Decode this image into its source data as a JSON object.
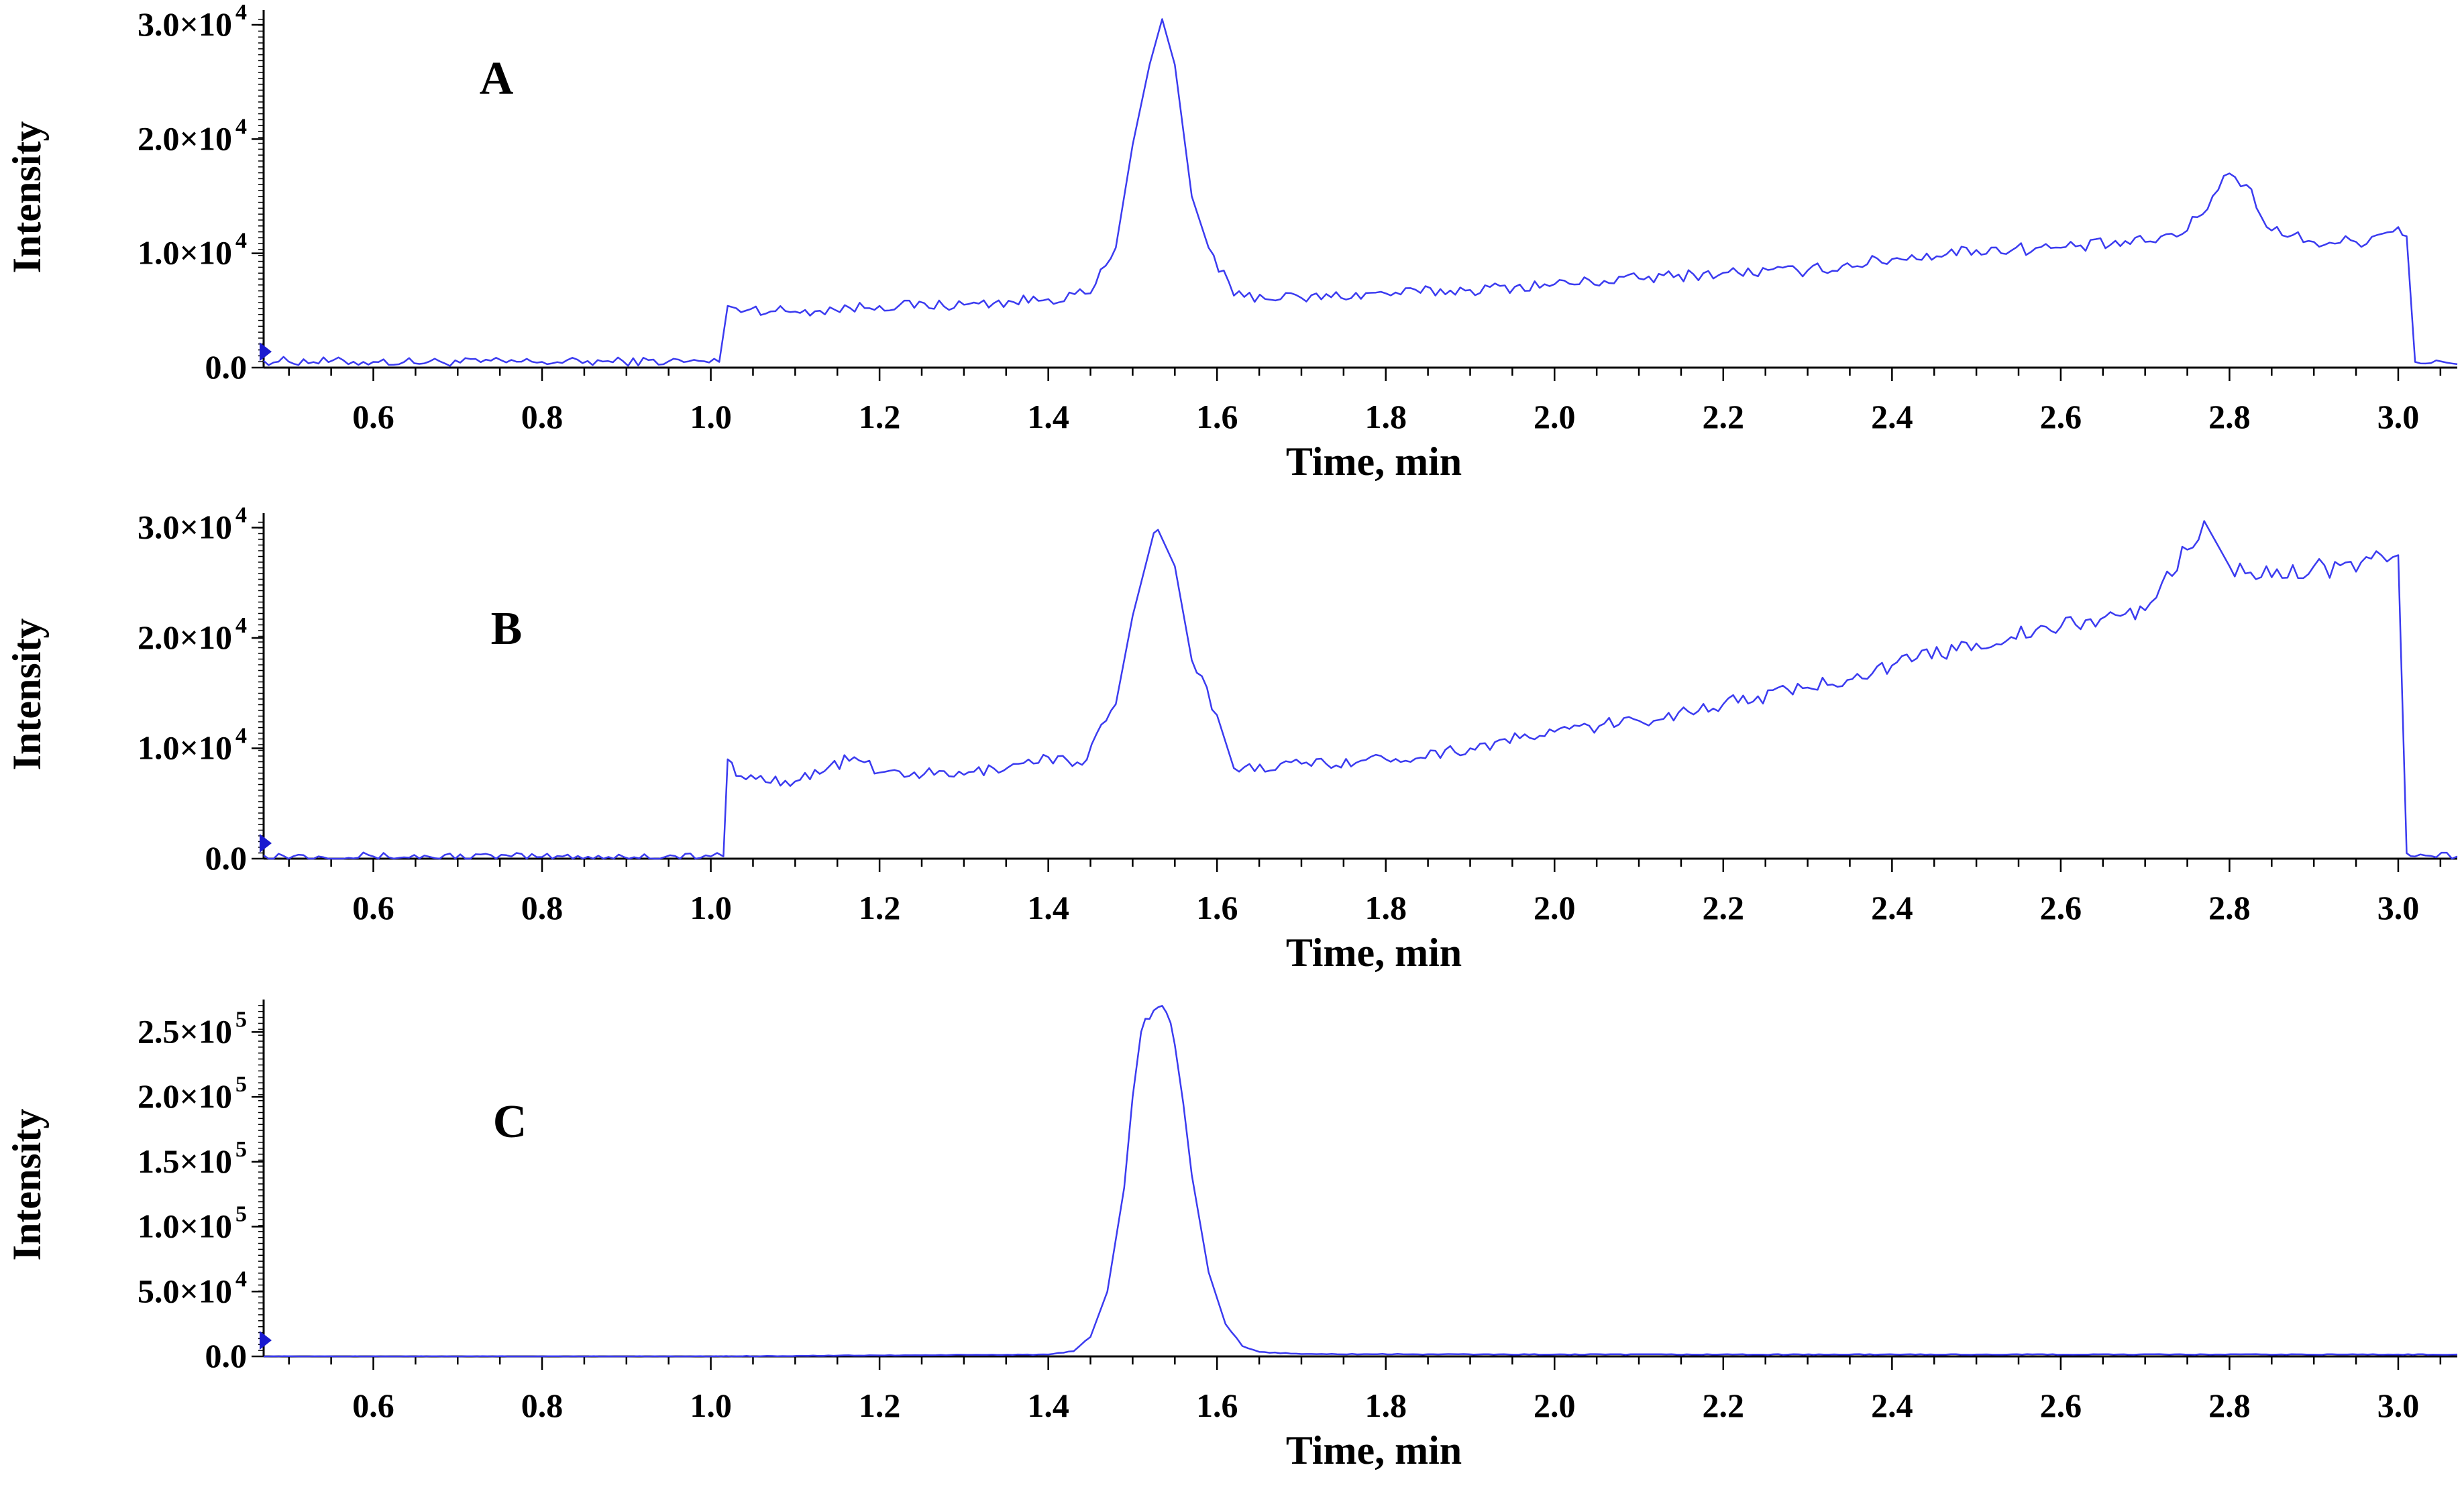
{
  "chart_data": [
    {
      "type": "line",
      "panel_label": "A",
      "xlabel": "Time, min",
      "ylabel": "Intensity",
      "xlim": [
        0.47,
        3.07
      ],
      "ylim": [
        0,
        31000
      ],
      "x_ticks": [
        "0.6",
        "0.8",
        "1.0",
        "1.2",
        "1.4",
        "1.6",
        "1.8",
        "2.0",
        "2.2",
        "2.4",
        "2.6",
        "2.8",
        "3.0"
      ],
      "y_ticks": [
        {
          "value": 0,
          "mantissa": "0.0",
          "exponent": ""
        },
        {
          "value": 10000,
          "mantissa": "1.0×10",
          "exponent": "4"
        },
        {
          "value": 20000,
          "mantissa": "2.0×10",
          "exponent": "4"
        },
        {
          "value": 30000,
          "mantissa": "3.0×10",
          "exponent": "4"
        }
      ],
      "line_color": "#3b3bf0",
      "series": [
        {
          "x": [
            0.47,
            0.6,
            0.8,
            0.95,
            1.01,
            1.02,
            1.03,
            1.1,
            1.2,
            1.3,
            1.4,
            1.45,
            1.48,
            1.5,
            1.52,
            1.535,
            1.55,
            1.57,
            1.59,
            1.62,
            1.7,
            1.8,
            1.9,
            2.0,
            2.1,
            2.2,
            2.3,
            2.4,
            2.5,
            2.6,
            2.7,
            2.75,
            2.78,
            2.8,
            2.82,
            2.85,
            2.9,
            2.95,
            3.0,
            3.01,
            3.02,
            3.07
          ],
          "y": [
            600,
            500,
            500,
            550,
            500,
            5400,
            5200,
            4900,
            5400,
            5500,
            6000,
            6500,
            10500,
            19500,
            26500,
            30500,
            26500,
            15000,
            10500,
            6300,
            6100,
            6500,
            6800,
            7300,
            7800,
            8300,
            8500,
            9500,
            10300,
            10500,
            11000,
            12000,
            15000,
            17000,
            16000,
            12000,
            11000,
            11000,
            12300,
            11500,
            500,
            300
          ]
        }
      ]
    },
    {
      "type": "line",
      "panel_label": "B",
      "xlabel": "Time, min",
      "ylabel": "Intensity",
      "xlim": [
        0.47,
        3.07
      ],
      "ylim": [
        0,
        31000
      ],
      "x_ticks": [
        "0.6",
        "0.8",
        "1.0",
        "1.2",
        "1.4",
        "1.6",
        "1.8",
        "2.0",
        "2.2",
        "2.4",
        "2.6",
        "2.8",
        "3.0"
      ],
      "y_ticks": [
        {
          "value": 0,
          "mantissa": "0.0",
          "exponent": ""
        },
        {
          "value": 10000,
          "mantissa": "1.0×10",
          "exponent": "4"
        },
        {
          "value": 20000,
          "mantissa": "2.0×10",
          "exponent": "4"
        },
        {
          "value": 30000,
          "mantissa": "3.0×10",
          "exponent": "4"
        }
      ],
      "line_color": "#3b3bf0",
      "series": [
        {
          "x": [
            0.47,
            0.6,
            0.8,
            1.0,
            1.015,
            1.02,
            1.03,
            1.1,
            1.17,
            1.2,
            1.3,
            1.4,
            1.44,
            1.48,
            1.5,
            1.52,
            1.53,
            1.55,
            1.57,
            1.6,
            1.62,
            1.7,
            1.8,
            1.9,
            2.0,
            2.1,
            2.2,
            2.3,
            2.4,
            2.5,
            2.6,
            2.7,
            2.72,
            2.75,
            2.77,
            2.8,
            2.85,
            2.9,
            2.95,
            2.98,
            3.0,
            3.01,
            3.02,
            3.07
          ],
          "y": [
            300,
            200,
            150,
            200,
            200,
            9000,
            7500,
            7000,
            9200,
            7800,
            7600,
            9200,
            8500,
            14000,
            22000,
            28000,
            29800,
            26500,
            18000,
            13000,
            8200,
            8600,
            9000,
            10000,
            11500,
            12500,
            14000,
            15500,
            17500,
            19500,
            21000,
            22500,
            25000,
            28000,
            30600,
            26500,
            25500,
            26500,
            26000,
            27500,
            27500,
            500,
            200,
            200
          ]
        }
      ]
    },
    {
      "type": "line",
      "panel_label": "C",
      "xlabel": "Time, min",
      "ylabel": "Intensity",
      "xlim": [
        0.47,
        3.07
      ],
      "ylim": [
        0,
        275000
      ],
      "x_ticks": [
        "0.6",
        "0.8",
        "1.0",
        "1.2",
        "1.4",
        "1.6",
        "1.8",
        "2.0",
        "2.2",
        "2.4",
        "2.6",
        "2.8",
        "3.0"
      ],
      "y_ticks": [
        {
          "value": 0,
          "mantissa": "0.0",
          "exponent": ""
        },
        {
          "value": 50000,
          "mantissa": "5.0×10",
          "exponent": "4"
        },
        {
          "value": 100000,
          "mantissa": "1.0×10",
          "exponent": "5"
        },
        {
          "value": 150000,
          "mantissa": "1.5×10",
          "exponent": "5"
        },
        {
          "value": 200000,
          "mantissa": "2.0×10",
          "exponent": "5"
        },
        {
          "value": 250000,
          "mantissa": "2.5×10",
          "exponent": "5"
        }
      ],
      "line_color": "#3b3bf0",
      "series": [
        {
          "x": [
            0.47,
            1.0,
            1.2,
            1.4,
            1.43,
            1.45,
            1.47,
            1.49,
            1.5,
            1.51,
            1.52,
            1.53,
            1.54,
            1.55,
            1.56,
            1.57,
            1.59,
            1.61,
            1.63,
            1.65,
            1.7,
            2.0,
            2.5,
            3.0,
            3.07
          ],
          "y": [
            0,
            0,
            800,
            1500,
            4000,
            15000,
            50000,
            130000,
            200000,
            250000,
            260000,
            269000,
            265000,
            240000,
            195000,
            140000,
            65000,
            25000,
            8000,
            3500,
            1800,
            1500,
            1500,
            1500,
            1500
          ]
        }
      ]
    }
  ]
}
